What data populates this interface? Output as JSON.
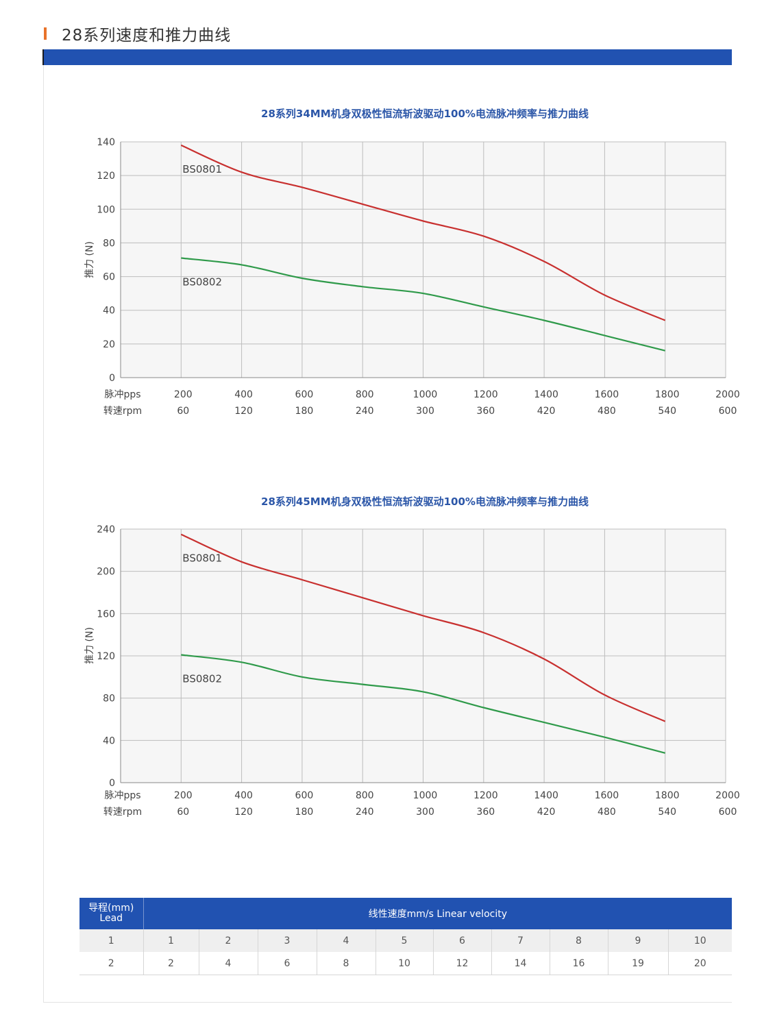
{
  "header": {
    "title": "28系列速度和推力曲线"
  },
  "colors": {
    "accent": "#e8732a",
    "band": "#2152b1",
    "curve_bs0801": "#c8302f",
    "curve_bs0802": "#2f9a4a",
    "chart_title": "#2b56a8"
  },
  "chart_data": [
    {
      "type": "line",
      "title": "28系列34MM机身双极性恒流斩波驱动100%电流脉冲频率与推力曲线",
      "ylabel": "推力 (N)",
      "ylim": [
        0,
        140
      ],
      "yticks": [
        0,
        20,
        40,
        60,
        80,
        100,
        120,
        140
      ],
      "xlim": [
        0,
        2000
      ],
      "x_rows": [
        {
          "label": "脉冲pps",
          "ticks": [
            "200",
            "400",
            "600",
            "800",
            "1000",
            "1200",
            "1400",
            "1600",
            "1800",
            "2000"
          ]
        },
        {
          "label": "转速rpm",
          "ticks": [
            "60",
            "120",
            "180",
            "240",
            "300",
            "360",
            "420",
            "480",
            "540",
            "600"
          ]
        }
      ],
      "grid": true,
      "series": [
        {
          "name": "BS0801",
          "x": [
            200,
            400,
            600,
            800,
            1000,
            1200,
            1400,
            1600,
            1800
          ],
          "y": [
            138,
            122,
            113,
            103,
            93,
            84,
            69,
            49,
            34
          ]
        },
        {
          "name": "BS0802",
          "x": [
            200,
            400,
            600,
            800,
            1000,
            1200,
            1400,
            1600,
            1800
          ],
          "y": [
            71,
            67,
            59,
            54,
            50,
            42,
            34,
            25,
            16
          ]
        }
      ]
    },
    {
      "type": "line",
      "title": "28系列45MM机身双极性恒流斩波驱动100%电流脉冲频率与推力曲线",
      "ylabel": "推力 (N)",
      "ylim": [
        0,
        240
      ],
      "yticks": [
        0,
        40,
        80,
        120,
        160,
        200,
        240
      ],
      "xlim": [
        0,
        2000
      ],
      "x_rows": [
        {
          "label": "脉冲pps",
          "ticks": [
            "200",
            "400",
            "600",
            "800",
            "1000",
            "1200",
            "1400",
            "1600",
            "1800",
            "2000"
          ]
        },
        {
          "label": "转速rpm",
          "ticks": [
            "60",
            "120",
            "180",
            "240",
            "300",
            "360",
            "420",
            "480",
            "540",
            "600"
          ]
        }
      ],
      "grid": true,
      "series": [
        {
          "name": "BS0801",
          "x": [
            200,
            400,
            600,
            800,
            1000,
            1200,
            1400,
            1600,
            1800
          ],
          "y": [
            235,
            209,
            192,
            175,
            158,
            142,
            117,
            83,
            58
          ]
        },
        {
          "name": "BS0802",
          "x": [
            200,
            400,
            600,
            800,
            1000,
            1200,
            1400,
            1600,
            1800
          ],
          "y": [
            121,
            114,
            100,
            93,
            86,
            71,
            57,
            43,
            28
          ]
        }
      ]
    }
  ],
  "table": {
    "lead_header": [
      "导程(mm)",
      "Lead"
    ],
    "velocity_header": "线性速度mm/s  Linear velocity",
    "rows": [
      [
        "1",
        "1",
        "2",
        "3",
        "4",
        "5",
        "6",
        "7",
        "8",
        "9",
        "10"
      ],
      [
        "2",
        "2",
        "4",
        "6",
        "8",
        "10",
        "12",
        "14",
        "16",
        "19",
        "20"
      ]
    ]
  }
}
